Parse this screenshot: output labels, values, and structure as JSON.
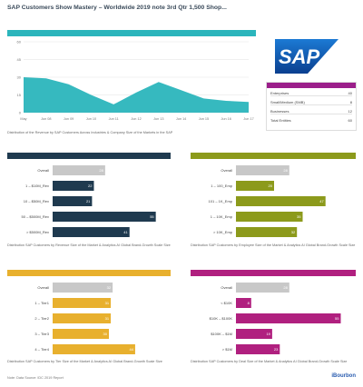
{
  "page": {
    "title": "SAP Customers Show Mastery – Worldwide 2019 note 3rd Qtr 1,500 Shop...",
    "footer_left": "Note: Data Source: IDC 2019 Report",
    "footer_right": "iBourbon"
  },
  "legend_box": {
    "rows": [
      {
        "label": "Enterprises",
        "value": "40"
      },
      {
        "label": "Small/Medium (SMB)",
        "value": "8"
      },
      {
        "label": "Businesses",
        "value": "12"
      },
      {
        "label": "Total Entities",
        "value": "60"
      }
    ]
  },
  "colors": {
    "teal": "#2bb5bc",
    "navy": "#1f3a4f",
    "olive": "#8c9a1b",
    "gold": "#e8b02e",
    "magenta": "#b0207f",
    "gray": "#c8c8c8"
  },
  "chart_data": [
    {
      "type": "area",
      "title": "",
      "caption": "Distribution of the Revenue by SAP Customers Across Industries & Company Size of the Markets in the SAP",
      "x": [
        "May",
        "Jun 08",
        "Jun 09",
        "Jun 10",
        "Jun 11",
        "Jun 12",
        "Jun 13",
        "Jun 14",
        "Jun 15",
        "Jun 16",
        "Jun 17"
      ],
      "values": [
        30,
        29,
        24,
        15,
        7,
        17,
        26,
        19,
        12,
        10,
        9
      ],
      "ylim": [
        0,
        60
      ],
      "yticks": [
        "60",
        "45",
        "30",
        "15",
        "0"
      ]
    },
    {
      "type": "bar",
      "title": "",
      "caption": "Distribution SAP Customers by Revenue Size of the Market & Analytics AI Global Brand-Growth Scale Size",
      "categories": [
        "Overall",
        "1 – $10M_Rev",
        "10 – $50M_Rev",
        "50 – $500M_Rev",
        "> $500M_Rev"
      ],
      "values": [
        28,
        22,
        21,
        55,
        41
      ],
      "xlim": [
        0,
        60
      ]
    },
    {
      "type": "bar",
      "title": "",
      "caption": "Distribution SAP Customers by Employee Size of the Market & Analytics AI Global Brand-Growth Scale Size",
      "categories": [
        "Overall",
        "1 – 100_Emp",
        "101 – 1K_Emp",
        "1 – 10K_Emp",
        "> 10K_Emp"
      ],
      "values": [
        28,
        20,
        47,
        35,
        32
      ],
      "xlim": [
        0,
        60
      ]
    },
    {
      "type": "bar",
      "title": "",
      "caption": "Distribution SAP Customers by Tier Size of the Market & Analytics AI Global Brand-Growth Scale Size",
      "categories": [
        "Overall",
        "1 – Tier1",
        "2 – Tier2",
        "3 – Tier3",
        "4 – Tier4"
      ],
      "values": [
        32,
        31,
        31,
        30,
        44
      ],
      "xlim": [
        0,
        60
      ]
    },
    {
      "type": "bar",
      "title": "",
      "caption": "Distribution SAP Customers by Deal Size of the Market & Analytics AI Global Brand-Growth Scale Size",
      "categories": [
        "Overall",
        "< $10K",
        "$10K – $100K",
        "$100K – $1M",
        "> $1M"
      ],
      "values": [
        28,
        8,
        55,
        19,
        23
      ],
      "xlim": [
        0,
        60
      ]
    }
  ]
}
